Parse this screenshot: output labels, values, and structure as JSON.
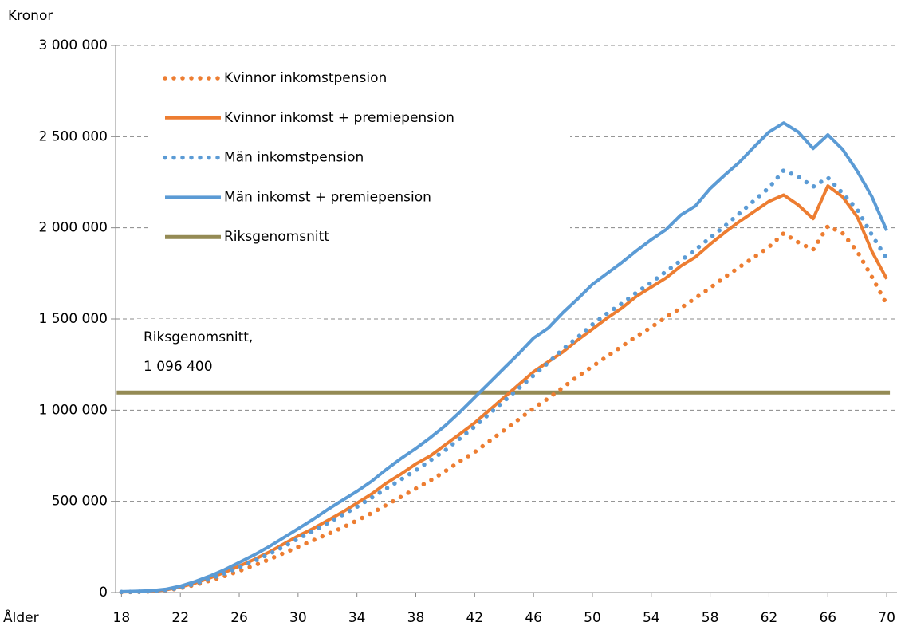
{
  "chart_data": {
    "type": "line",
    "y_axis_label": "Kronor",
    "x_axis_label": "Ålder",
    "x": [
      18,
      19,
      20,
      21,
      22,
      23,
      24,
      25,
      26,
      27,
      28,
      29,
      30,
      31,
      32,
      33,
      34,
      35,
      36,
      37,
      38,
      39,
      40,
      41,
      42,
      43,
      44,
      45,
      46,
      47,
      48,
      49,
      50,
      51,
      52,
      53,
      54,
      55,
      56,
      57,
      58,
      59,
      60,
      61,
      62,
      63,
      64,
      65,
      66,
      67,
      68,
      69,
      70
    ],
    "xlim": [
      17.6,
      70.7
    ],
    "xticks": [
      18,
      22,
      26,
      30,
      34,
      38,
      42,
      46,
      50,
      54,
      58,
      62,
      66,
      70
    ],
    "ylim": [
      0,
      3000000
    ],
    "yticks": [
      {
        "value": 0,
        "label": "0"
      },
      {
        "value": 500000,
        "label": "500 000"
      },
      {
        "value": 1000000,
        "label": "1 000 000"
      },
      {
        "value": 1500000,
        "label": "1 500 000"
      },
      {
        "value": 2000000,
        "label": "2 000 000"
      },
      {
        "value": 2500000,
        "label": "2 500 000"
      },
      {
        "value": 3000000,
        "label": "3 000 000"
      }
    ],
    "grid": true,
    "legend": "top-left",
    "series": [
      {
        "name": "Kvinnor inkomstpension",
        "color": "#ed7d31",
        "dash": "dotted",
        "values": [
          2000,
          3000,
          6000,
          11000,
          24000,
          42000,
          65000,
          90000,
          118000,
          148000,
          180000,
          215000,
          250000,
          285000,
          320000,
          355000,
          395000,
          435000,
          480000,
          525000,
          570000,
          615000,
          665000,
          720000,
          770000,
          830000,
          890000,
          950000,
          1010000,
          1065000,
          1125000,
          1185000,
          1240000,
          1295000,
          1350000,
          1405000,
          1455000,
          1510000,
          1560000,
          1615000,
          1670000,
          1730000,
          1785000,
          1840000,
          1895000,
          1970000,
          1920000,
          1880000,
          2010000,
          1970000,
          1870000,
          1730000,
          1580000
        ]
      },
      {
        "name": "Kvinnor inkomst + premiepension",
        "color": "#ed7d31",
        "dash": "solid",
        "values": [
          3000,
          5000,
          8000,
          15000,
          30000,
          52000,
          80000,
          110000,
          145000,
          180000,
          220000,
          265000,
          310000,
          350000,
          395000,
          440000,
          490000,
          540000,
          600000,
          650000,
          705000,
          750000,
          810000,
          870000,
          930000,
          1000000,
          1070000,
          1140000,
          1210000,
          1265000,
          1320000,
          1385000,
          1445000,
          1505000,
          1560000,
          1625000,
          1675000,
          1725000,
          1790000,
          1840000,
          1910000,
          1975000,
          2035000,
          2090000,
          2145000,
          2180000,
          2125000,
          2050000,
          2230000,
          2170000,
          2060000,
          1870000,
          1720000
        ]
      },
      {
        "name": "Män inkomstpension",
        "color": "#5b9bd5",
        "dash": "dotted",
        "values": [
          3000,
          4000,
          7000,
          13000,
          27000,
          48000,
          75000,
          105000,
          138000,
          172000,
          210000,
          250000,
          295000,
          335000,
          380000,
          425000,
          470000,
          520000,
          570000,
          620000,
          670000,
          725000,
          780000,
          845000,
          910000,
          980000,
          1050000,
          1120000,
          1190000,
          1260000,
          1335000,
          1400000,
          1470000,
          1530000,
          1585000,
          1645000,
          1700000,
          1760000,
          1820000,
          1880000,
          1945000,
          2010000,
          2080000,
          2150000,
          2220000,
          2315000,
          2280000,
          2225000,
          2275000,
          2190000,
          2100000,
          1960000,
          1830000
        ]
      },
      {
        "name": "Män inkomst + premiepension",
        "color": "#5b9bd5",
        "dash": "solid",
        "values": [
          5000,
          7000,
          10000,
          18000,
          35000,
          60000,
          90000,
          125000,
          165000,
          205000,
          250000,
          300000,
          350000,
          400000,
          455000,
          505000,
          555000,
          610000,
          675000,
          735000,
          790000,
          850000,
          915000,
          990000,
          1070000,
          1150000,
          1230000,
          1310000,
          1395000,
          1450000,
          1535000,
          1610000,
          1690000,
          1750000,
          1810000,
          1875000,
          1935000,
          1990000,
          2070000,
          2120000,
          2215000,
          2290000,
          2360000,
          2445000,
          2525000,
          2575000,
          2525000,
          2435000,
          2510000,
          2430000,
          2310000,
          2170000,
          1985000
        ]
      }
    ],
    "reference_line": {
      "name": "Riksgenomsnitt",
      "color": "#948a54",
      "value": 1096400,
      "label": "Riksgenomsnitt,",
      "value_label": "1 096 400"
    }
  }
}
